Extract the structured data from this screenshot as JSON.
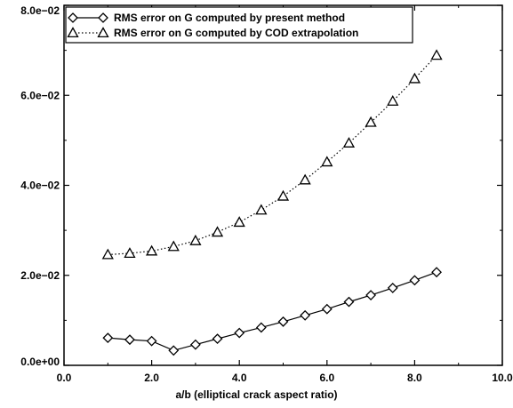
{
  "chart_data": {
    "type": "line",
    "title": "",
    "xlabel": "a/b (elliptical crack aspect ratio)",
    "ylabel": "",
    "xlim": [
      0.0,
      10.0
    ],
    "ylim": [
      0.0,
      0.08
    ],
    "x_ticks": [
      0.0,
      2.0,
      4.0,
      6.0,
      8.0,
      10.0
    ],
    "x_tick_labels": [
      "0.0",
      "2.0",
      "4.0",
      "6.0",
      "8.0",
      "10.0"
    ],
    "y_ticks": [
      0.0,
      0.02,
      0.04,
      0.06,
      0.08
    ],
    "y_tick_labels": [
      "0.0e+00",
      "2.0e−02",
      "4.0e−02",
      "6.0e−02",
      "8.0e−02"
    ],
    "grid": false,
    "legend_position": "top-left",
    "series": [
      {
        "name": "RMS error on G computed by present method",
        "marker": "diamond",
        "line_style": "solid",
        "color": "#000000",
        "x": [
          1.0,
          1.5,
          2.0,
          2.5,
          3.0,
          3.5,
          4.0,
          4.5,
          5.0,
          5.5,
          6.0,
          6.5,
          7.0,
          7.5,
          8.0,
          8.5
        ],
        "y": [
          0.0061,
          0.0057,
          0.0054,
          0.0033,
          0.0046,
          0.0059,
          0.0072,
          0.0084,
          0.0097,
          0.0111,
          0.0125,
          0.0141,
          0.0156,
          0.0172,
          0.0189,
          0.0207
        ]
      },
      {
        "name": "RMS error on G computed by COD extrapolation",
        "marker": "triangle",
        "line_style": "dotted",
        "color": "#000000",
        "x": [
          1.0,
          1.5,
          2.0,
          2.5,
          3.0,
          3.5,
          4.0,
          4.5,
          5.0,
          5.5,
          6.0,
          6.5,
          7.0,
          7.5,
          8.0,
          8.5
        ],
        "y": [
          0.0246,
          0.0249,
          0.0254,
          0.0264,
          0.0277,
          0.0296,
          0.0318,
          0.0345,
          0.0376,
          0.0412,
          0.0452,
          0.0494,
          0.054,
          0.0587,
          0.0637,
          0.0689
        ]
      }
    ]
  }
}
